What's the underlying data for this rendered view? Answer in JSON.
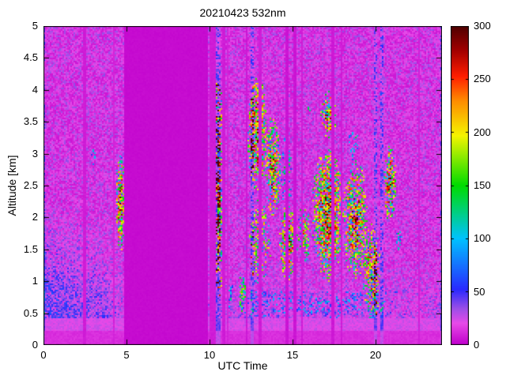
{
  "chart_data": {
    "type": "heatmap",
    "title": "20210423 532nm",
    "xlabel": "UTC Time",
    "ylabel": "Altitude [km]",
    "xlim": [
      0,
      24
    ],
    "ylim": [
      0,
      5
    ],
    "x_ticks": [
      0,
      5,
      10,
      15,
      20
    ],
    "y_ticks": [
      0,
      0.5,
      1,
      1.5,
      2,
      2.5,
      3,
      3.5,
      4,
      4.5,
      5
    ],
    "colorbar": {
      "min": 0,
      "max": 300,
      "ticks": [
        0,
        50,
        100,
        150,
        200,
        250,
        300
      ]
    },
    "colormap_stops": [
      [
        0,
        "#C000CC"
      ],
      [
        20,
        "#E84AE8"
      ],
      [
        34,
        "#9B4FE8"
      ],
      [
        52,
        "#2A2AFF"
      ],
      [
        100,
        "#00C3FF"
      ],
      [
        150,
        "#00DC00"
      ],
      [
        197,
        "#F5F500"
      ],
      [
        230,
        "#FF8C00"
      ],
      [
        253,
        "#FF1E00"
      ],
      [
        278,
        "#A00000"
      ],
      [
        300,
        "#500000"
      ]
    ],
    "background_noise": {
      "vmin": 6,
      "vmax": 36
    },
    "low_altitude_blue_noise": {
      "t_max": 4.75,
      "alt_max": 2.2,
      "vmax": 55
    },
    "surface_band": {
      "y0": 0.22,
      "y1": 0.42,
      "vmin": 18,
      "vmax": 28
    },
    "below_overlap": {
      "y_max": 0.22,
      "vmin": 10,
      "vmax": 15
    },
    "gap_band": {
      "t0": 4.9,
      "t1": 9.87,
      "value": 2
    },
    "dark_stripes": [
      {
        "t0": 2.42,
        "t1": 2.56,
        "v": 6
      },
      {
        "t0": 4.2,
        "t1": 4.32,
        "v": 8
      },
      {
        "t0": 10.02,
        "t1": 10.36,
        "v": 6
      },
      {
        "t0": 10.78,
        "t1": 10.95,
        "v": 6
      },
      {
        "t0": 11.05,
        "t1": 11.12,
        "v": 8
      },
      {
        "t0": 12.18,
        "t1": 12.3,
        "v": 5
      },
      {
        "t0": 13.0,
        "t1": 13.1,
        "v": 6
      },
      {
        "t0": 14.55,
        "t1": 14.75,
        "v": 4
      },
      {
        "t0": 15.05,
        "t1": 15.22,
        "v": 4
      },
      {
        "t0": 15.5,
        "t1": 15.6,
        "v": 6
      },
      {
        "t0": 16.05,
        "t1": 16.14,
        "v": 6
      },
      {
        "t0": 17.38,
        "t1": 17.52,
        "v": 5
      },
      {
        "t0": 17.88,
        "t1": 17.98,
        "v": 6
      },
      {
        "t0": 22.55,
        "t1": 22.65,
        "v": 7
      }
    ],
    "bright_stripes": [
      {
        "t0": 0.02,
        "t1": 0.14
      },
      {
        "t0": 10.4,
        "t1": 10.7
      },
      {
        "t0": 12.5,
        "t1": 12.62
      },
      {
        "t0": 19.9,
        "t1": 20.05
      },
      {
        "t0": 20.32,
        "t1": 20.52
      },
      {
        "t0": 23.88,
        "t1": 24.0
      }
    ],
    "features": [
      {
        "shape": "ellipse",
        "t0": 2.82,
        "t1": 3.15,
        "y0": 2.82,
        "y1": 3.1,
        "density": 0.5,
        "vmin": 40,
        "vmax": 130
      },
      {
        "shape": "ellipse",
        "t0": 4.35,
        "t1": 4.9,
        "y0": 1.45,
        "y1": 3.1,
        "density": 0.85,
        "vmin": 60,
        "vmax": 300
      },
      {
        "shape": "rect",
        "t0": 10.38,
        "t1": 10.75,
        "y0": 0.75,
        "y1": 4.15,
        "density": 0.7,
        "vmin": 50,
        "vmax": 300
      },
      {
        "shape": "ellipse",
        "t0": 11.1,
        "t1": 11.45,
        "y0": 0.5,
        "y1": 1.0,
        "density": 0.45,
        "vmin": 40,
        "vmax": 140
      },
      {
        "shape": "ellipse",
        "t0": 11.75,
        "t1": 12.2,
        "y0": 0.45,
        "y1": 1.15,
        "density": 0.55,
        "vmin": 50,
        "vmax": 200
      },
      {
        "shape": "ellipse",
        "t0": 12.3,
        "t1": 13.45,
        "y0": 2.4,
        "y1": 4.25,
        "density": 0.85,
        "vmin": 70,
        "vmax": 300
      },
      {
        "shape": "ellipse",
        "t0": 12.4,
        "t1": 13.7,
        "y0": 0.9,
        "y1": 2.3,
        "density": 0.5,
        "vmin": 50,
        "vmax": 260
      },
      {
        "shape": "ellipse",
        "t0": 13.35,
        "t1": 14.3,
        "y0": 2.0,
        "y1": 3.6,
        "density": 0.8,
        "vmin": 60,
        "vmax": 300
      },
      {
        "shape": "ellipse",
        "t0": 14.2,
        "t1": 15.3,
        "y0": 1.0,
        "y1": 2.2,
        "density": 0.85,
        "vmin": 80,
        "vmax": 300
      },
      {
        "shape": "ellipse",
        "t0": 14.3,
        "t1": 15.1,
        "y0": 2.1,
        "y1": 3.3,
        "density": 0.3,
        "vmin": 40,
        "vmax": 180
      },
      {
        "shape": "ellipse",
        "t0": 15.3,
        "t1": 16.1,
        "y0": 1.3,
        "y1": 2.2,
        "density": 0.6,
        "vmin": 50,
        "vmax": 250
      },
      {
        "shape": "ellipse",
        "t0": 15.85,
        "t1": 16.1,
        "y0": 3.55,
        "y1": 3.8,
        "density": 0.25,
        "vmin": 40,
        "vmax": 140
      },
      {
        "shape": "ellipse",
        "t0": 16.15,
        "t1": 18.1,
        "y0": 1.0,
        "y1": 3.1,
        "density": 0.9,
        "vmin": 70,
        "vmax": 300
      },
      {
        "shape": "ellipse",
        "t0": 16.7,
        "t1": 17.65,
        "y0": 3.25,
        "y1": 4.0,
        "density": 0.8,
        "vmin": 60,
        "vmax": 300
      },
      {
        "shape": "ellipse",
        "t0": 18.05,
        "t1": 19.55,
        "y0": 1.0,
        "y1": 2.9,
        "density": 0.75,
        "vmin": 60,
        "vmax": 300
      },
      {
        "shape": "ellipse",
        "t0": 18.3,
        "t1": 19.0,
        "y0": 2.9,
        "y1": 3.4,
        "density": 0.3,
        "vmin": 40,
        "vmax": 160
      },
      {
        "shape": "ellipse",
        "t0": 19.25,
        "t1": 20.3,
        "y0": 0.35,
        "y1": 1.9,
        "density": 0.7,
        "vmin": 50,
        "vmax": 290
      },
      {
        "shape": "ellipse",
        "t0": 20.5,
        "t1": 21.25,
        "y0": 1.9,
        "y1": 3.15,
        "density": 0.8,
        "vmin": 60,
        "vmax": 300
      },
      {
        "shape": "ellipse",
        "t0": 21.25,
        "t1": 21.6,
        "y0": 1.4,
        "y1": 1.9,
        "density": 0.4,
        "vmin": 40,
        "vmax": 150
      },
      {
        "shape": "rect",
        "t0": 12.0,
        "t1": 21.3,
        "y0": 0.42,
        "y1": 0.85,
        "density": 0.3,
        "vmin": 30,
        "vmax": 110
      }
    ]
  }
}
